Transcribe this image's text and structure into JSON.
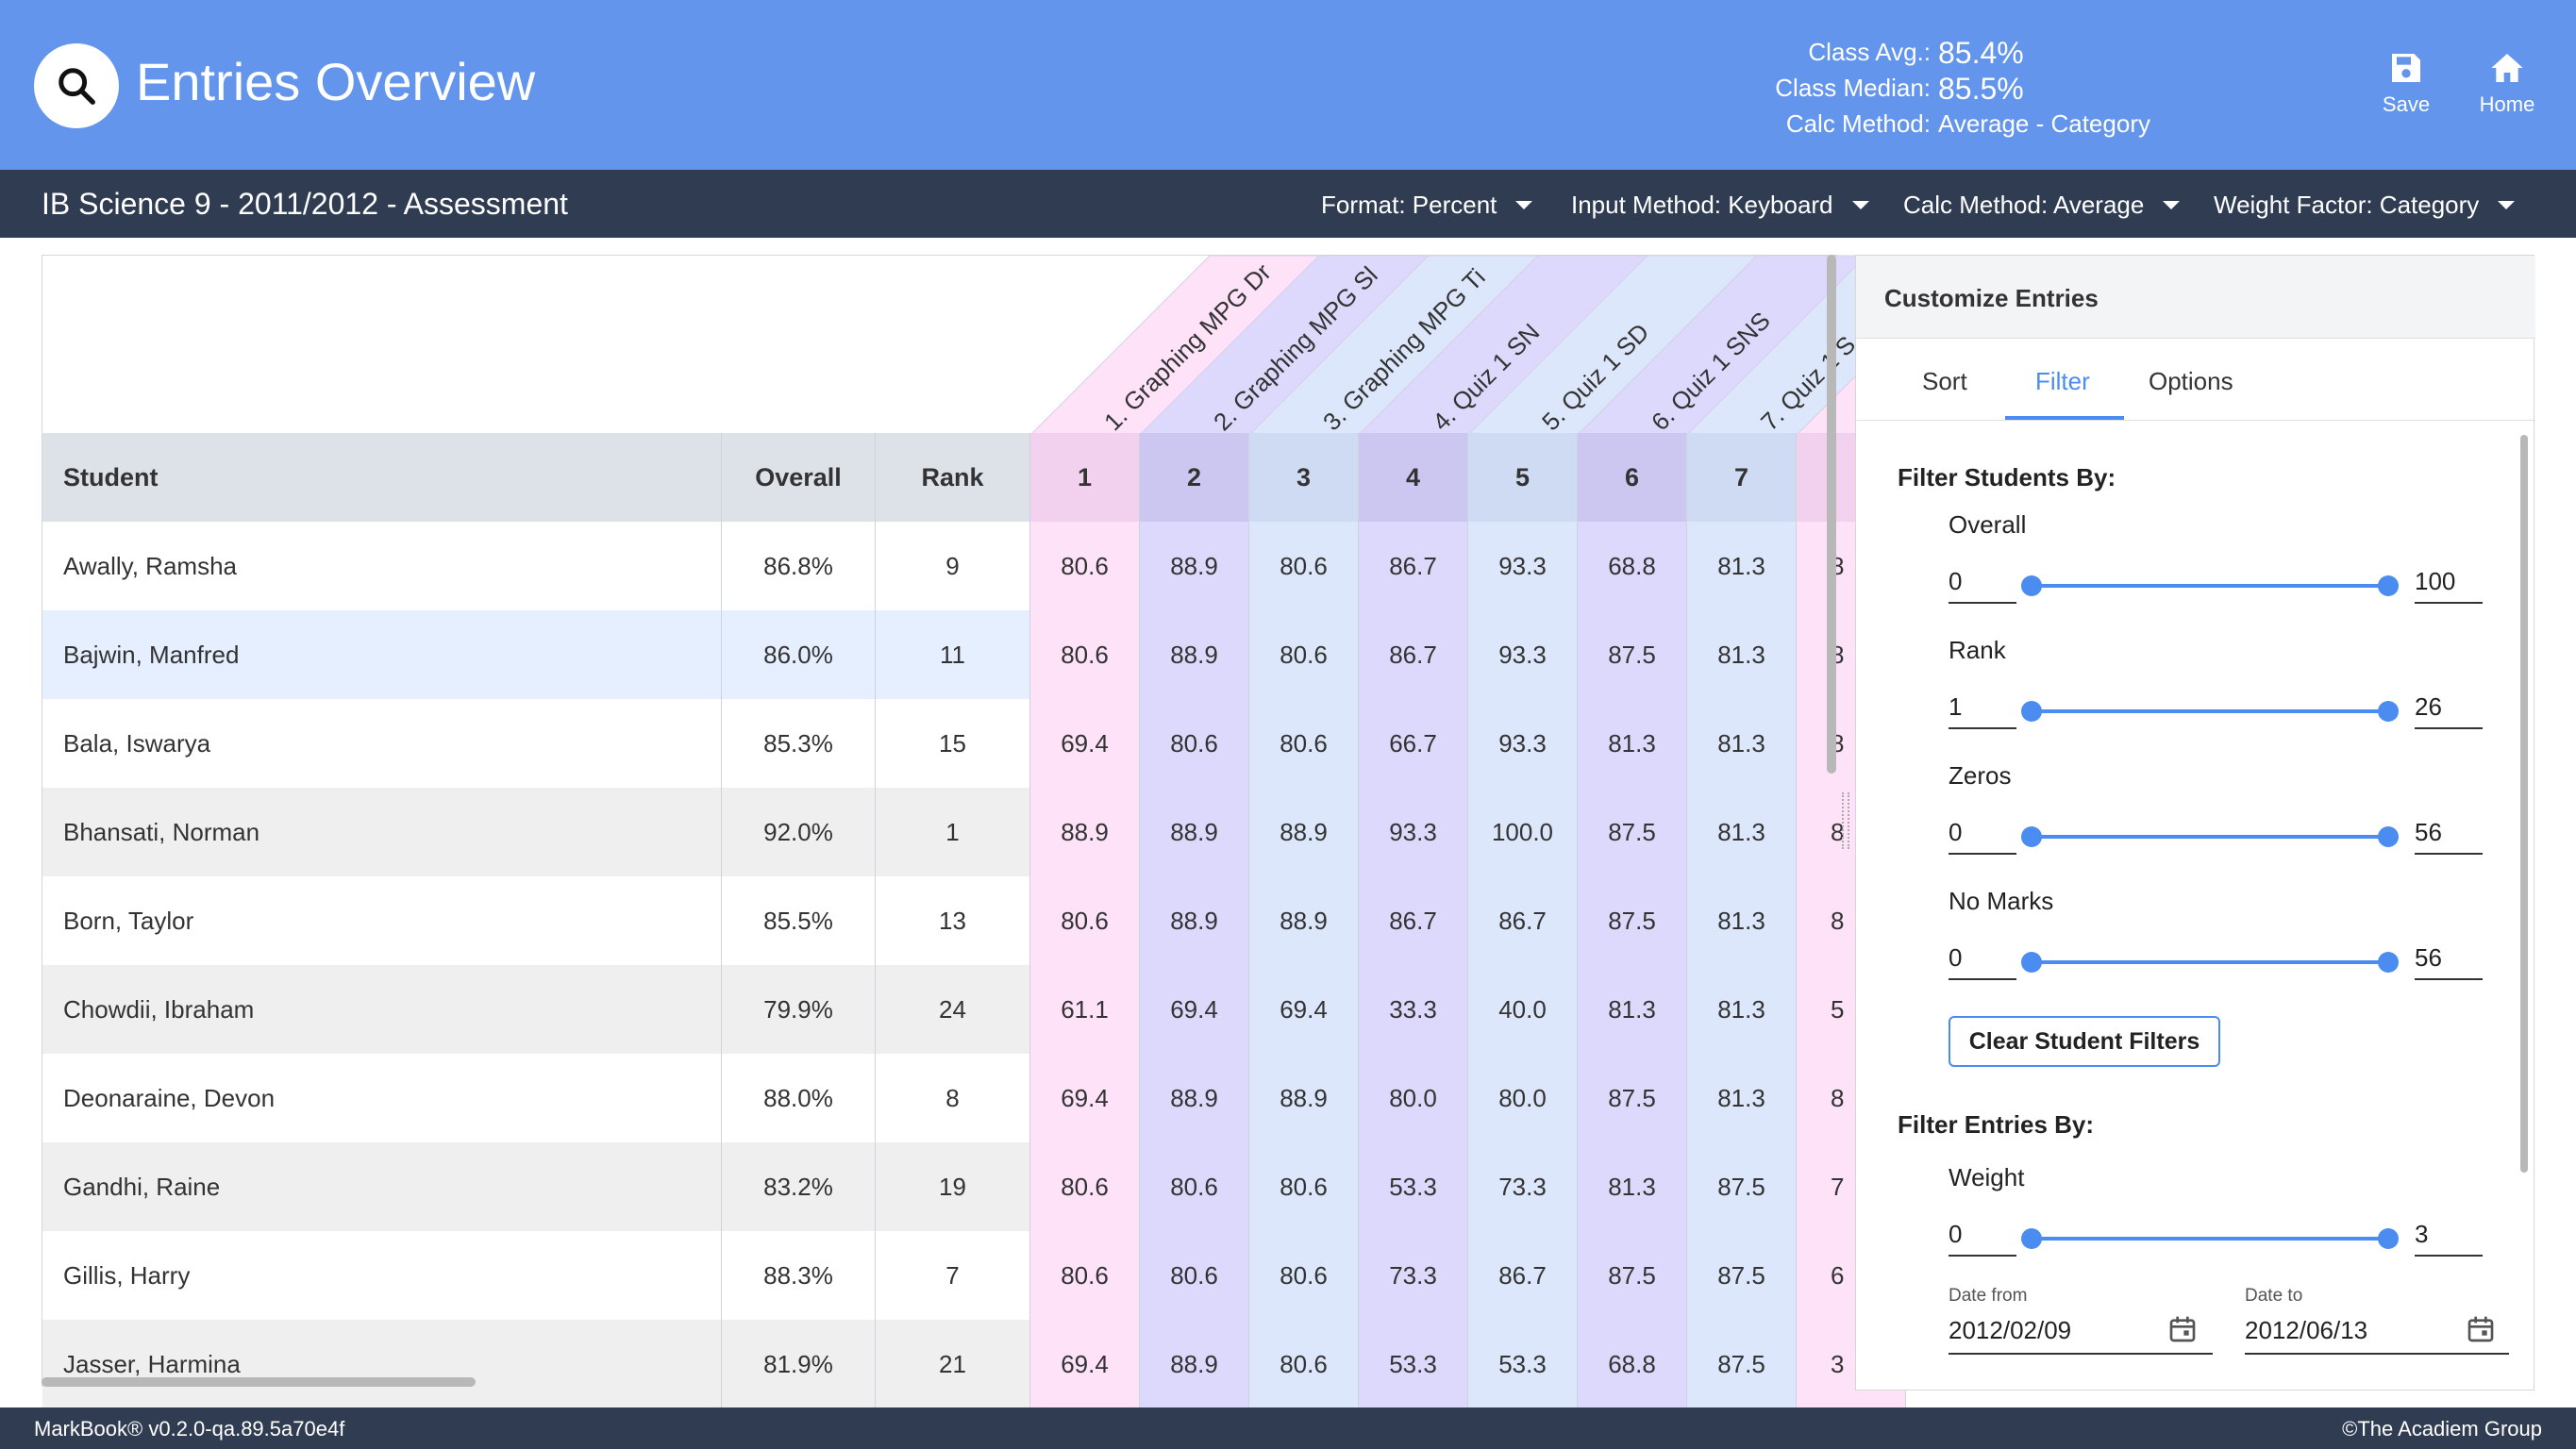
{
  "header": {
    "title": "Entries Overview",
    "stats": [
      {
        "label": "Class Avg.:",
        "value": "85.4%"
      },
      {
        "label": "Class Median:",
        "value": "85.5%"
      },
      {
        "label": "Calc Method:",
        "value": "Average - Category"
      }
    ],
    "save_label": "Save",
    "home_label": "Home"
  },
  "subheader": {
    "course_title": "IB Science 9 - 2011/2012 - Assessment",
    "format": "Format: Percent",
    "input_method": "Input Method: Keyboard",
    "calc_method": "Calc Method: Average",
    "weight_factor": "Weight Factor: Category"
  },
  "grid": {
    "entry_titles": [
      "1. Graphing MPG Dr",
      "2. Graphing MPG Sl",
      "3. Graphing MPG Ti",
      "4. Quiz 1 SN",
      "5. Quiz 1 SD",
      "6. Quiz 1 SNS",
      "7. Quiz 1 S"
    ],
    "columns": {
      "student": "Student",
      "overall": "Overall",
      "rank": "Rank"
    },
    "entry_numbers": [
      "1",
      "2",
      "3",
      "4",
      "5",
      "6",
      "7"
    ],
    "rows": [
      {
        "name": "Awally, Ramsha",
        "overall": "86.8%",
        "rank": "9",
        "marks": [
          "80.6",
          "88.9",
          "80.6",
          "86.7",
          "93.3",
          "68.8",
          "81.3"
        ],
        "extra": "8"
      },
      {
        "name": "Bajwin, Manfred",
        "overall": "86.0%",
        "rank": "11",
        "marks": [
          "80.6",
          "88.9",
          "80.6",
          "86.7",
          "93.3",
          "87.5",
          "81.3"
        ],
        "extra": "8"
      },
      {
        "name": "Bala, Iswarya",
        "overall": "85.3%",
        "rank": "15",
        "marks": [
          "69.4",
          "80.6",
          "80.6",
          "66.7",
          "93.3",
          "81.3",
          "81.3"
        ],
        "extra": "8"
      },
      {
        "name": "Bhansati, Norman",
        "overall": "92.0%",
        "rank": "1",
        "marks": [
          "88.9",
          "88.9",
          "88.9",
          "93.3",
          "100.0",
          "87.5",
          "81.3"
        ],
        "extra": "8"
      },
      {
        "name": "Born, Taylor",
        "overall": "85.5%",
        "rank": "13",
        "marks": [
          "80.6",
          "88.9",
          "88.9",
          "86.7",
          "86.7",
          "87.5",
          "81.3"
        ],
        "extra": "8"
      },
      {
        "name": "Chowdii, Ibraham",
        "overall": "79.9%",
        "rank": "24",
        "marks": [
          "61.1",
          "69.4",
          "69.4",
          "33.3",
          "40.0",
          "81.3",
          "81.3"
        ],
        "extra": "5"
      },
      {
        "name": "Deonaraine, Devon",
        "overall": "88.0%",
        "rank": "8",
        "marks": [
          "69.4",
          "88.9",
          "88.9",
          "80.0",
          "80.0",
          "87.5",
          "81.3"
        ],
        "extra": "8"
      },
      {
        "name": "Gandhi, Raine",
        "overall": "83.2%",
        "rank": "19",
        "marks": [
          "80.6",
          "80.6",
          "80.6",
          "53.3",
          "73.3",
          "81.3",
          "87.5"
        ],
        "extra": "7"
      },
      {
        "name": "Gillis, Harry",
        "overall": "88.3%",
        "rank": "7",
        "marks": [
          "80.6",
          "80.6",
          "80.6",
          "73.3",
          "86.7",
          "87.5",
          "87.5"
        ],
        "extra": "6"
      },
      {
        "name": "Jasser, Harmina",
        "overall": "81.9%",
        "rank": "21",
        "marks": [
          "69.4",
          "88.9",
          "80.6",
          "53.3",
          "53.3",
          "68.8",
          "87.5"
        ],
        "extra": "3"
      }
    ]
  },
  "customize": {
    "title": "Customize Entries",
    "tabs": [
      "Sort",
      "Filter",
      "Options"
    ],
    "active_tab": "Filter",
    "filter_students_heading": "Filter Students By:",
    "student_filters": [
      {
        "label": "Overall",
        "min": "0",
        "max": "100"
      },
      {
        "label": "Rank",
        "min": "1",
        "max": "26"
      },
      {
        "label": "Zeros",
        "min": "0",
        "max": "56"
      },
      {
        "label": "No Marks",
        "min": "0",
        "max": "56"
      }
    ],
    "clear_button": "Clear Student Filters",
    "filter_entries_heading": "Filter Entries By:",
    "weight": {
      "label": "Weight",
      "min": "0",
      "max": "3"
    },
    "date_from_label": "Date from",
    "date_from": "2012/02/09",
    "date_to_label": "Date to",
    "date_to": "2012/06/13"
  },
  "footer": {
    "version": "MarkBook® v0.2.0-qa.89.5a70e4f",
    "copyright": "©The Acadiem Group"
  },
  "colors": {
    "header_bg": "#6395ec",
    "subheader_bg": "#2f3c52",
    "accent": "#4a8cf0",
    "entry_palette": [
      "#fde2f8",
      "#dcd9fc",
      "#dde7fb"
    ]
  }
}
